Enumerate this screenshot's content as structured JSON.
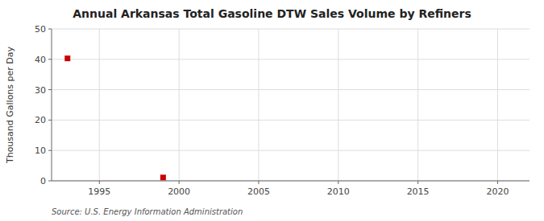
{
  "chart_data": {
    "type": "scatter",
    "title": "Annual Arkansas Total Gasoline DTW Sales Volume by Refiners",
    "y_label": "Thousand Gallons per Day",
    "source": "Source: U.S. Energy Information Administration",
    "x": [
      1993,
      1999
    ],
    "values": [
      40.3,
      1.1
    ],
    "color": "#cc0000",
    "marker": "square",
    "xlim": [
      1992,
      2022
    ],
    "ylim": [
      0,
      50
    ],
    "xticks": [
      1995,
      2000,
      2005,
      2010,
      2015,
      2020
    ],
    "yticks": [
      0,
      10,
      20,
      30,
      40,
      50
    ],
    "grid": true
  }
}
